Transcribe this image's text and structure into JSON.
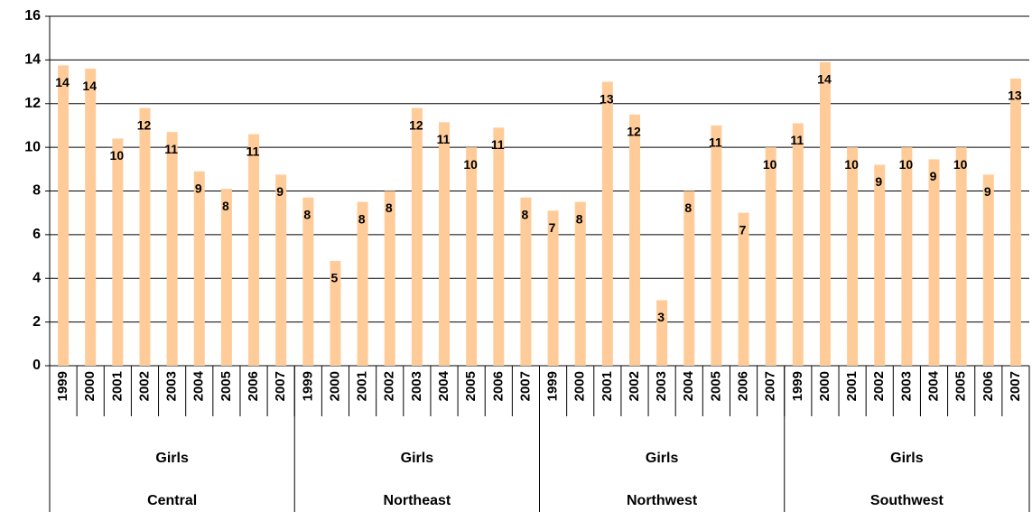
{
  "chart_data": {
    "type": "bar",
    "categories": [
      "1999",
      "2000",
      "2001",
      "2002",
      "2003",
      "2004",
      "2005",
      "2006",
      "2007",
      "1999",
      "2000",
      "2001",
      "2002",
      "2003",
      "2004",
      "2005",
      "2006",
      "2007",
      "1999",
      "2000",
      "2001",
      "2002",
      "2003",
      "2004",
      "2005",
      "2006",
      "2007",
      "1999",
      "2000",
      "2001",
      "2002",
      "2003",
      "2004",
      "2005",
      "2006",
      "2007"
    ],
    "groups": [
      {
        "sublabel": "Girls",
        "label": "Central"
      },
      {
        "sublabel": "Girls",
        "label": "Northeast"
      },
      {
        "sublabel": "Girls",
        "label": "Northwest"
      },
      {
        "sublabel": "Girls",
        "label": "Southwest"
      }
    ],
    "values": [
      13.75,
      13.6,
      10.4,
      11.8,
      10.7,
      8.9,
      8.1,
      10.6,
      8.75,
      7.7,
      4.8,
      7.5,
      8.0,
      11.8,
      11.15,
      10.0,
      10.9,
      7.7,
      7.1,
      7.5,
      13.0,
      11.5,
      3.0,
      8.0,
      11.0,
      7.0,
      10.0,
      11.1,
      13.9,
      10.0,
      9.2,
      10.0,
      9.45,
      10.0,
      8.75,
      13.15
    ],
    "value_labels": [
      "14",
      "14",
      "10",
      "12",
      "11",
      "9",
      "8",
      "11",
      "9",
      "8",
      "5",
      "8",
      "8",
      "12",
      "11",
      "10",
      "11",
      "8",
      "7",
      "8",
      "13",
      "12",
      "3",
      "8",
      "11",
      "7",
      "10",
      "11",
      "14",
      "10",
      "9",
      "10",
      "9",
      "10",
      "9",
      "13"
    ],
    "color": "#ffcc99",
    "ylim": [
      0,
      16
    ],
    "yticks": [
      0,
      2,
      4,
      6,
      8,
      10,
      12,
      14,
      16
    ],
    "grid": true
  }
}
